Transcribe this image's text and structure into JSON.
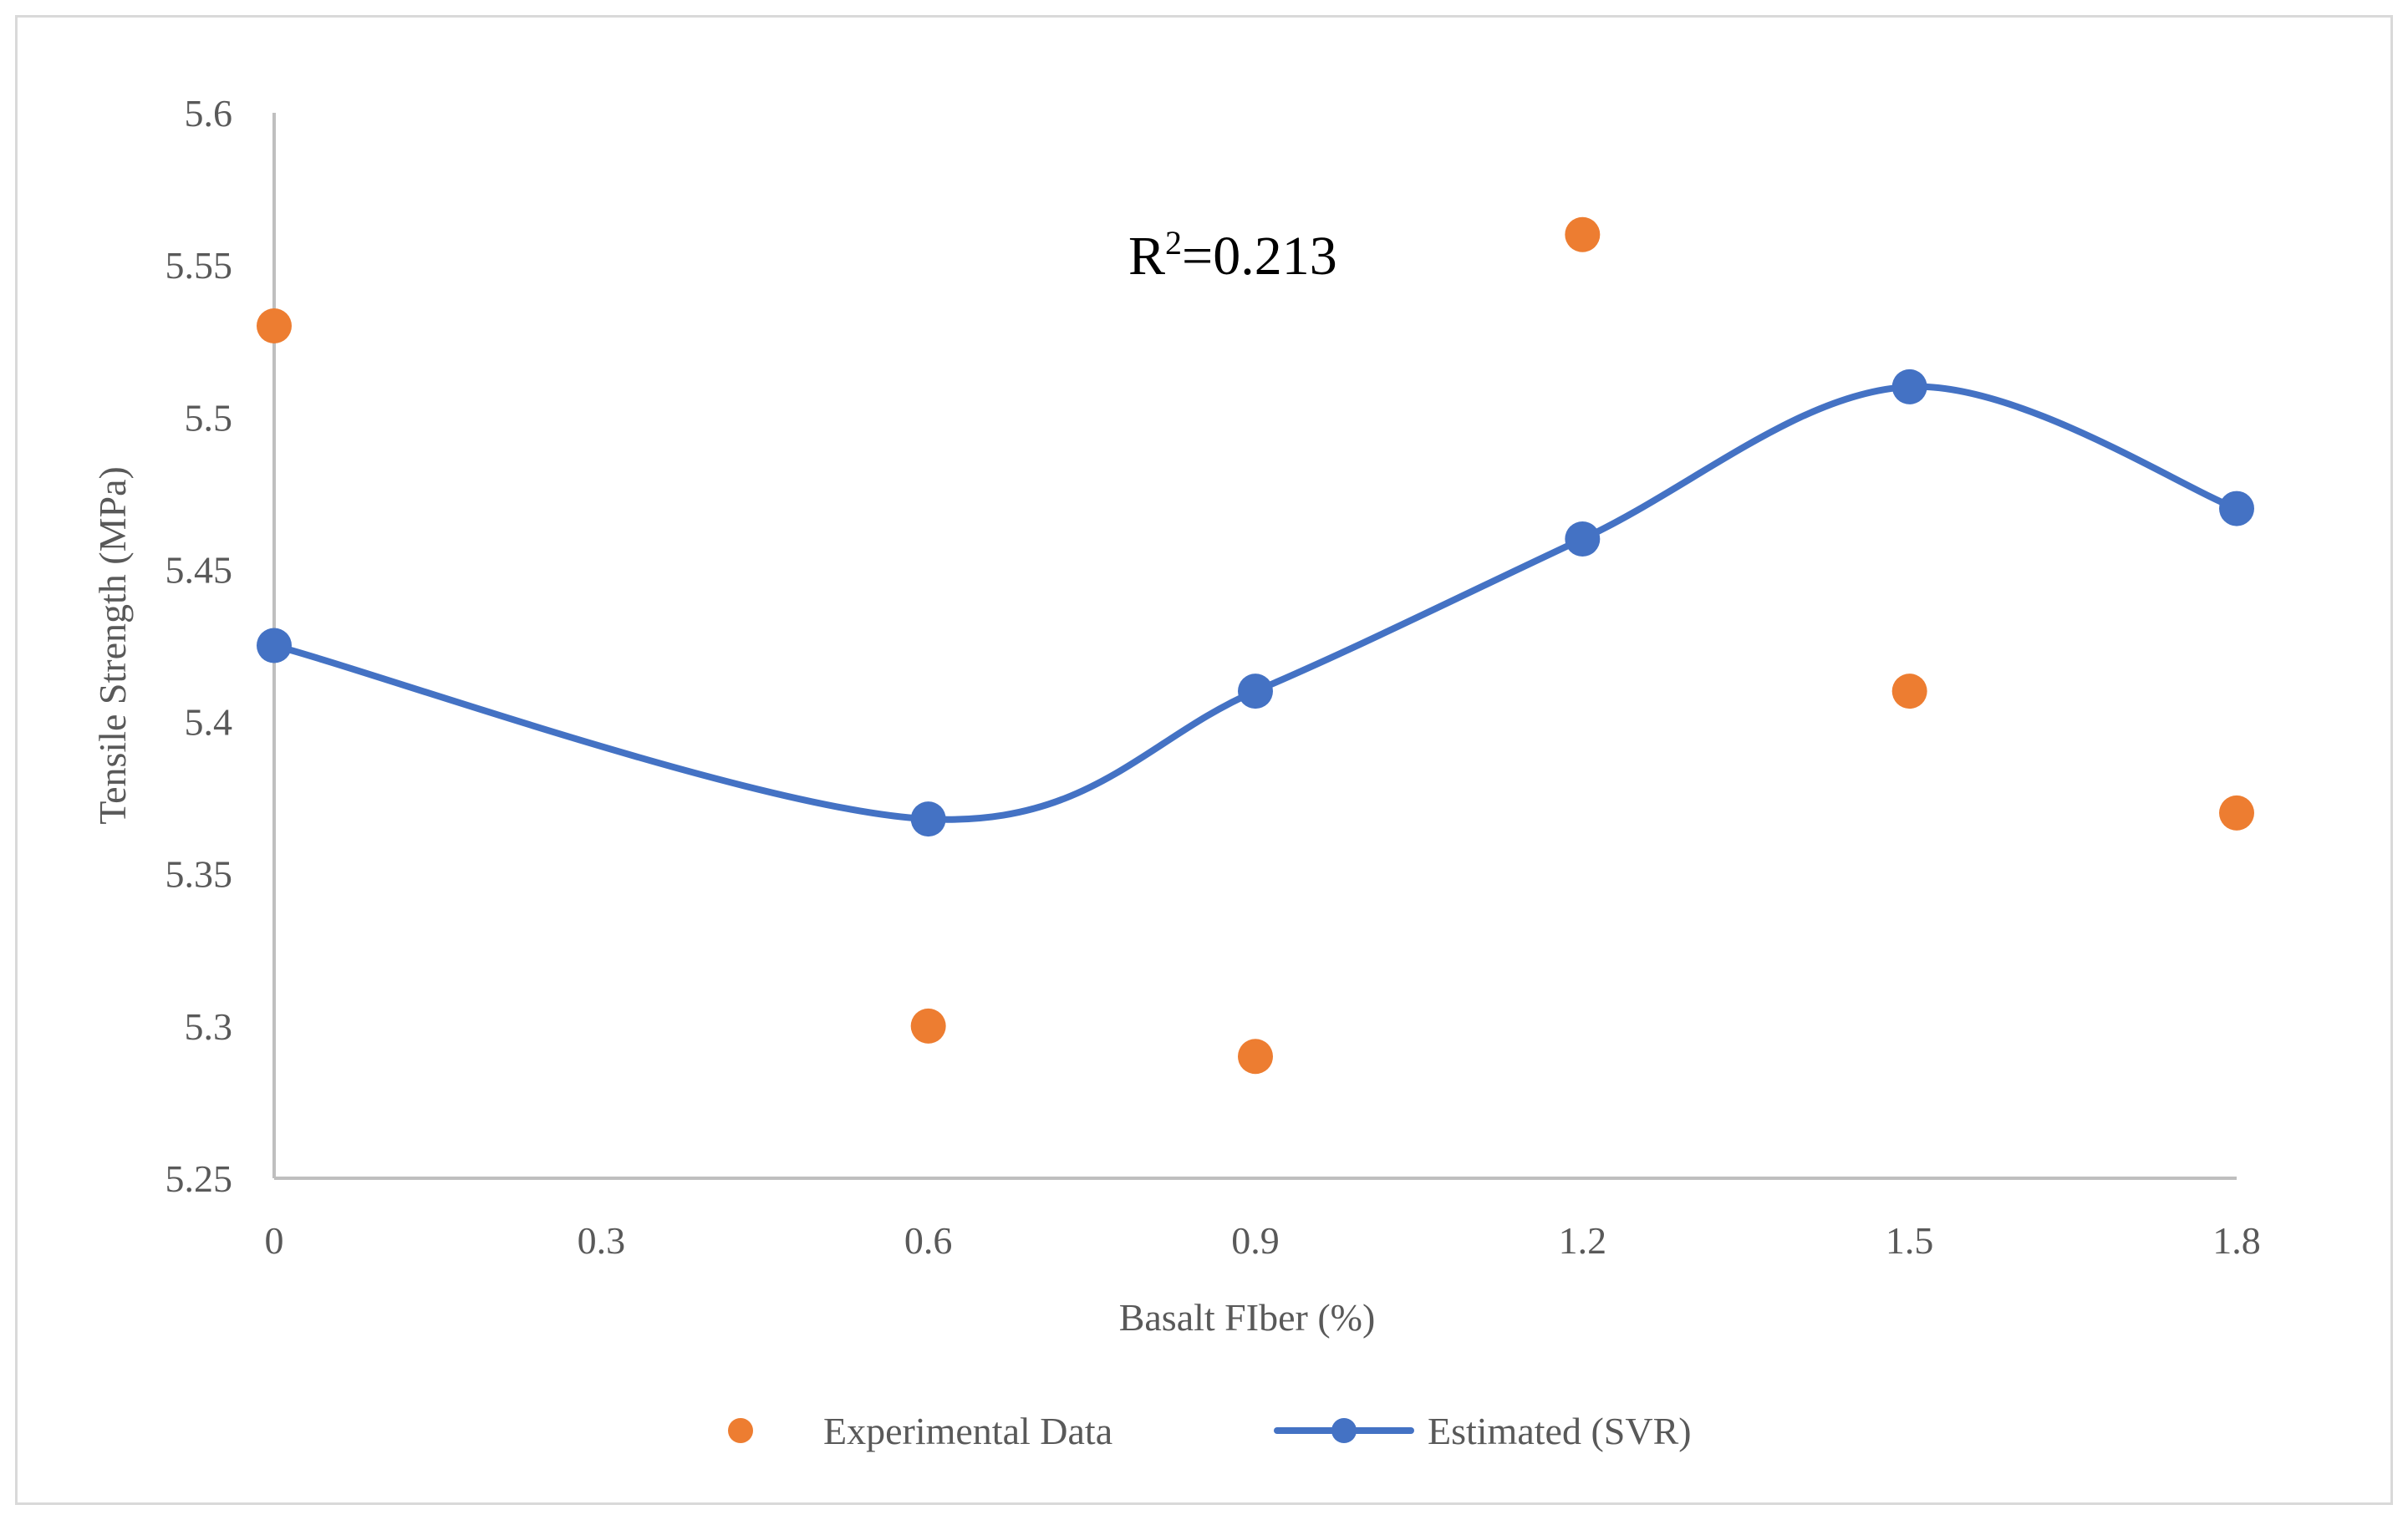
{
  "chart_data": {
    "type": "scatter",
    "title": "",
    "xlabel": "Basalt FIber (%)",
    "ylabel": "Tensile Strength (MPa)",
    "xlim": [
      0,
      1.8
    ],
    "ylim": [
      5.25,
      5.6
    ],
    "x_ticks": [
      "0",
      "0.3",
      "0.6",
      "0.9",
      "1.2",
      "1.5",
      "1.8"
    ],
    "x_tick_values": [
      0,
      0.3,
      0.6,
      0.9,
      1.2,
      1.5,
      1.8
    ],
    "y_ticks": [
      "5.6",
      "5.55",
      "5.5",
      "5.45",
      "5.4",
      "5.35",
      "5.3",
      "5.25"
    ],
    "y_tick_values": [
      5.6,
      5.55,
      5.5,
      5.45,
      5.4,
      5.35,
      5.3,
      5.25
    ],
    "grid": false,
    "legend_position": "bottom",
    "annotation": {
      "base": "R",
      "superscript": "2",
      "rest": "=0.213"
    },
    "series": [
      {
        "name": "Experimental Data",
        "kind": "scatter",
        "color": "#ed7d31",
        "x": [
          0,
          0.6,
          0.9,
          1.2,
          1.5,
          1.8
        ],
        "y": [
          5.53,
          5.3,
          5.29,
          5.56,
          5.41,
          5.37
        ]
      },
      {
        "name": "Estimated (SVR)",
        "kind": "smooth-line-with-markers",
        "color": "#4472c4",
        "x": [
          0,
          0.6,
          0.9,
          1.2,
          1.5,
          1.8
        ],
        "y": [
          5.425,
          5.368,
          5.41,
          5.46,
          5.51,
          5.47
        ]
      }
    ]
  }
}
